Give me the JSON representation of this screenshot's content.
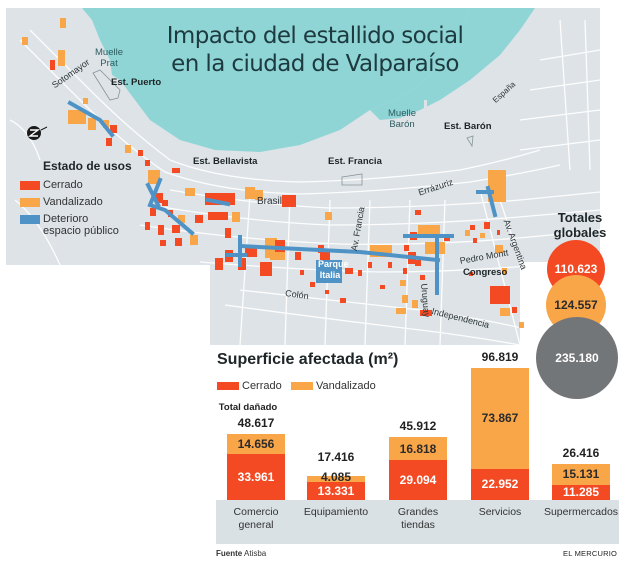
{
  "title_lines": [
    "Impacto del estallido social",
    "en la ciudad de Valparaíso"
  ],
  "map": {
    "water_labels": [
      {
        "name": "muelle-prat",
        "text": "Muelle\nPrat"
      },
      {
        "name": "muelle-baron",
        "text": "Muelle\nBarón"
      }
    ],
    "stations": {
      "puerto": "Est. Puerto",
      "bellavista": "Est. Bellavista",
      "francia": "Est. Francia",
      "baron": "Est. Barón"
    },
    "streets": {
      "sotomayor": "Sotomayor",
      "espana": "España",
      "errazuriz": "Errázuriz",
      "brasil": "Brasil",
      "av_francia": "Av. Francia",
      "parque_italia": "Parque\nItalia",
      "uruguay": "Uruguay",
      "pedro_montt": "Pedro Montt",
      "congreso": "Congreso",
      "av_argentina": "Av. Argentina",
      "colon": "Colón",
      "independencia": "Independencia"
    },
    "compass_icon": "north-arrow-icon"
  },
  "legend": {
    "title": "Estado de usos",
    "items": [
      {
        "label": "Cerrado",
        "color": "#f44a24"
      },
      {
        "label": "Vandalizado",
        "color": "#f9a648"
      },
      {
        "label": "Deterioro\nespacio público",
        "color": "#4f93c6"
      }
    ]
  },
  "totals": {
    "title": "Totales\nglobales",
    "cerrado": "110.623",
    "vandalizado": "124.557",
    "total": "235.180",
    "colors": {
      "cerrado": "#f44a24",
      "vandalizado": "#f9a648",
      "total": "#737678"
    }
  },
  "colors": {
    "water": "#8fd5d6",
    "land": "#dde3e7",
    "street": "#ffffff",
    "cerrado": "#f44a24",
    "vandalizado": "#f9a648",
    "deterioro": "#4f93c6",
    "axis_band": "#d9e1e5"
  },
  "chart_data": {
    "type": "bar",
    "stacked": true,
    "title": "Superficie afectada (m²)",
    "xlabel": "",
    "ylabel": "",
    "total_label": "Total dañado",
    "legend": [
      "Cerrado",
      "Vandalizado"
    ],
    "legend_placement": "top-left",
    "categories": [
      "Comercio\ngeneral",
      "Equipamiento",
      "Grandes\ntiendas",
      "Servicios",
      "Supermercados"
    ],
    "series": [
      {
        "name": "Cerrado",
        "color": "#f44a24",
        "values": [
          33961,
          13331,
          29094,
          22952,
          11285
        ],
        "labels": [
          "33.961",
          "13.331",
          "29.094",
          "22.952",
          "11.285"
        ]
      },
      {
        "name": "Vandalizado",
        "color": "#f9a648",
        "values": [
          14656,
          4085,
          16818,
          73867,
          15131
        ],
        "labels": [
          "14.656",
          "4.085",
          "16.818",
          "73.867",
          "15.131"
        ]
      }
    ],
    "totals": [
      48617,
      17416,
      45912,
      96819,
      26416
    ],
    "total_labels": [
      "48.617",
      "17.416",
      "45.912",
      "96.819",
      "26.416"
    ],
    "ylim": [
      0,
      100000
    ],
    "grid": false
  },
  "footer": {
    "source_label": "Fuente",
    "source_value": "Atisba",
    "brand": "EL MERCURIO"
  }
}
